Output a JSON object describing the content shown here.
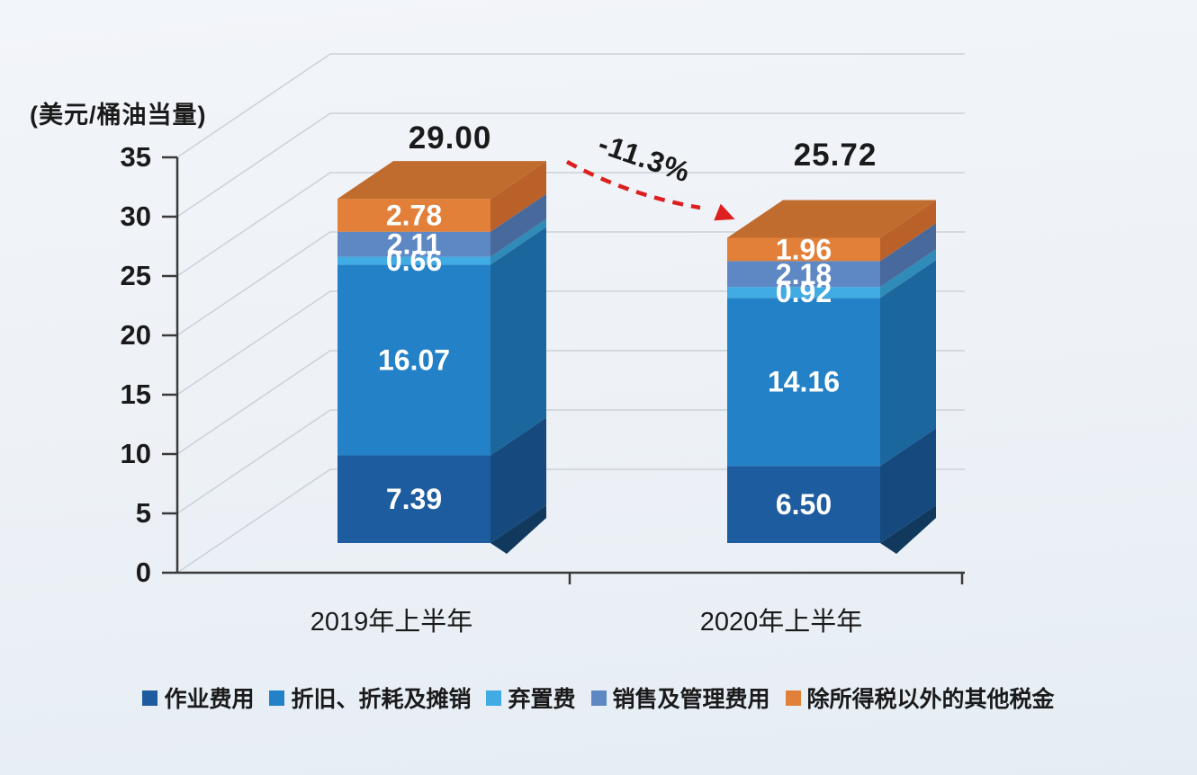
{
  "unit_label": "(美元/桶油当量)",
  "colors": {
    "background_top": "#F2F5F9",
    "background_bottom": "#E5EDF4",
    "axis": "#3A3A3A",
    "gridline": "#CBD1D9",
    "arrow_red": "#DD1F1F",
    "text": "#1A1A1A",
    "value_label_text": "#FFFFFF"
  },
  "chart_data": {
    "type": "bar",
    "stacked": true,
    "pseudo_3d": true,
    "title": "",
    "ylabel": "(美元/桶油当量)",
    "xlabel": "",
    "ylim": [
      0,
      35
    ],
    "yticks": [
      0,
      5,
      10,
      15,
      20,
      25,
      30,
      35
    ],
    "grid": true,
    "legend_position": "bottom",
    "categories": [
      "2019年上半年",
      "2020年上半年"
    ],
    "series": [
      {
        "name": "作业费用",
        "color": "#1D5C9E",
        "side_color": "#164A7E",
        "values": [
          7.39,
          6.5
        ]
      },
      {
        "name": "折旧、折耗及摊销",
        "color": "#2382C7",
        "side_color": "#1B669D",
        "values": [
          16.07,
          14.16
        ]
      },
      {
        "name": "弃置费",
        "color": "#41ACE3",
        "side_color": "#2F8BB8",
        "values": [
          0.66,
          0.92
        ]
      },
      {
        "name": "销售及管理费用",
        "color": "#5E88C4",
        "side_color": "#48699B",
        "values": [
          2.11,
          2.18
        ]
      },
      {
        "name": "除所得税以外的其他税金",
        "color": "#E2803A",
        "side_color": "#BA6129",
        "top_color": "#C16C2F",
        "values": [
          2.78,
          1.96
        ]
      }
    ],
    "value_labels": [
      [
        "7.39",
        "16.07",
        "0.66",
        "2.11",
        "2.78"
      ],
      [
        "6.50",
        "14.16",
        "0.92",
        "2.18",
        "1.96"
      ]
    ],
    "totals": [
      "29.00",
      "25.72"
    ],
    "change_label": "-11.3%"
  }
}
